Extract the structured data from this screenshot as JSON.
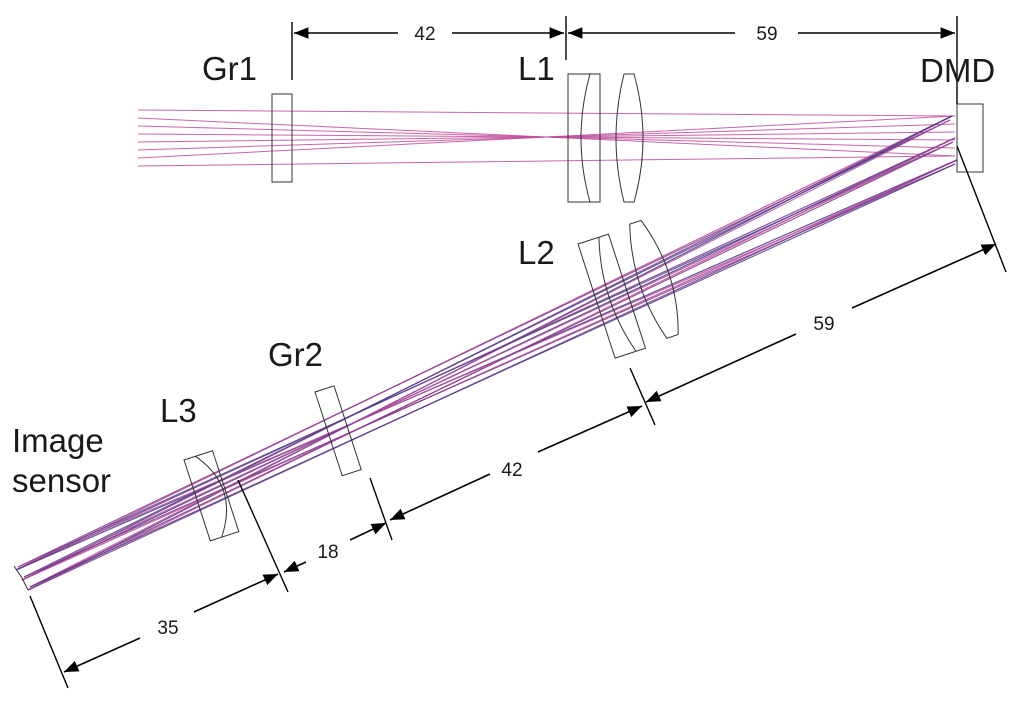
{
  "labels": {
    "gr1": "Gr1",
    "l1": "L1",
    "dmd": "DMD",
    "l2": "L2",
    "gr2": "Gr2",
    "l3": "L3",
    "image_sensor_line1": "Image",
    "image_sensor_line2": "sensor"
  },
  "dimensions": {
    "top_left": "42",
    "top_right": "59",
    "diag_59": "59",
    "diag_42": "42",
    "diag_18": "18",
    "diag_35": "35"
  },
  "colors": {
    "ray_magenta": "#c04a9a",
    "ray_purple": "#7a3a8c",
    "ray_blue": "#4a3a8a",
    "outline": "#333333",
    "dimension": "#000000"
  }
}
